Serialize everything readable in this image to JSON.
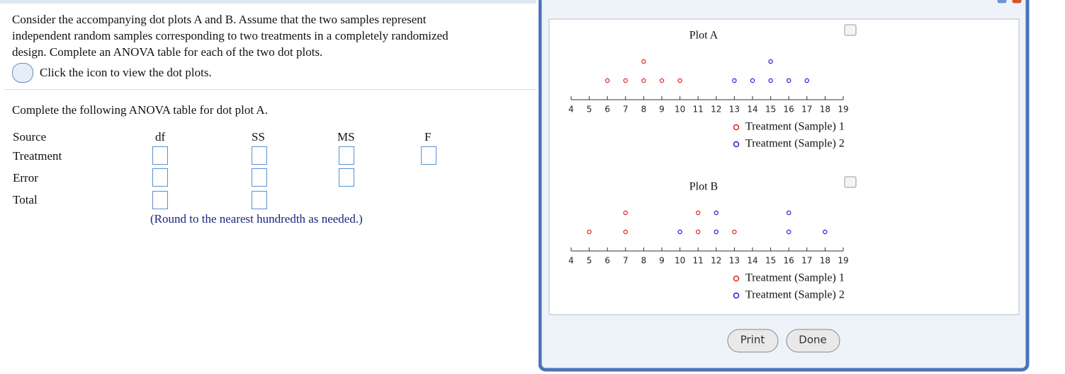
{
  "question": {
    "lines": [
      "Consider the accompanying dot plots A and B. Assume that the two samples represent",
      "independent random samples corresponding to two treatments in a completely randomized",
      "design. Complete an ANOVA table for each of the two dot plots."
    ],
    "icon_link": "Click the icon to view the dot plots."
  },
  "instruction": "Complete the following ANOVA table for dot plot A.",
  "table": {
    "headers": [
      "Source",
      "df",
      "SS",
      "MS",
      "F"
    ],
    "rows": [
      "Treatment",
      "Error",
      "Total"
    ]
  },
  "note": "(Round to the nearest hundredth as needed.)",
  "buttons": [
    "Print",
    "Done"
  ],
  "chart_data": [
    {
      "type": "dot",
      "title": "Plot A",
      "xlim": [
        4,
        19
      ],
      "xticks": [
        4,
        5,
        6,
        7,
        8,
        9,
        10,
        11,
        12,
        13,
        14,
        15,
        16,
        17,
        18,
        19
      ],
      "series": [
        {
          "name": "Treatment (Sample) 1",
          "color": "#e02020",
          "values": [
            6,
            7,
            8,
            8,
            9,
            10
          ]
        },
        {
          "name": "Treatment (Sample) 2",
          "color": "#2020d0",
          "values": [
            13,
            14,
            15,
            15,
            16,
            17
          ]
        }
      ]
    },
    {
      "type": "dot",
      "title": "Plot B",
      "xlim": [
        4,
        19
      ],
      "xticks": [
        4,
        5,
        6,
        7,
        8,
        9,
        10,
        11,
        12,
        13,
        14,
        15,
        16,
        17,
        18,
        19
      ],
      "series": [
        {
          "name": "Treatment (Sample) 1",
          "color": "#e02020",
          "values": [
            5,
            7,
            7,
            11,
            11,
            13
          ]
        },
        {
          "name": "Treatment (Sample) 2",
          "color": "#2020d0",
          "values": [
            10,
            12,
            12,
            16,
            16,
            18
          ]
        }
      ]
    }
  ]
}
